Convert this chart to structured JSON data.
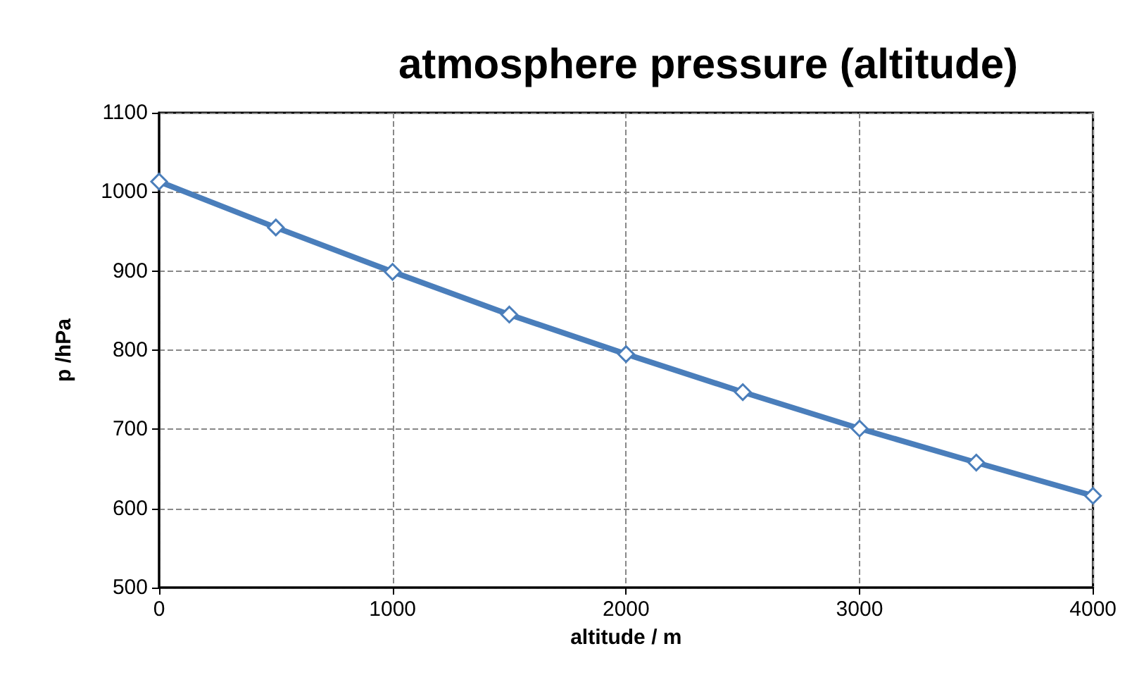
{
  "chart_data": {
    "type": "line",
    "title": "atmosphere pressure (altitude)",
    "xlabel": "altitude / m",
    "ylabel": "p /hPa",
    "x": [
      0,
      500,
      1000,
      1500,
      2000,
      2500,
      3000,
      3500,
      4000
    ],
    "series": [
      {
        "color": "#4a7ebb",
        "values": [
          1013,
          955,
          899,
          845,
          795,
          747,
          701,
          658,
          616
        ]
      }
    ],
    "xlim": [
      0,
      4000
    ],
    "xticks": [
      0,
      1000,
      2000,
      3000,
      4000
    ],
    "ylim": [
      500,
      1100
    ],
    "yticks": [
      500,
      600,
      700,
      800,
      900,
      1000,
      1100
    ],
    "grid": true,
    "marker": "diamond",
    "line_style": "solid"
  }
}
